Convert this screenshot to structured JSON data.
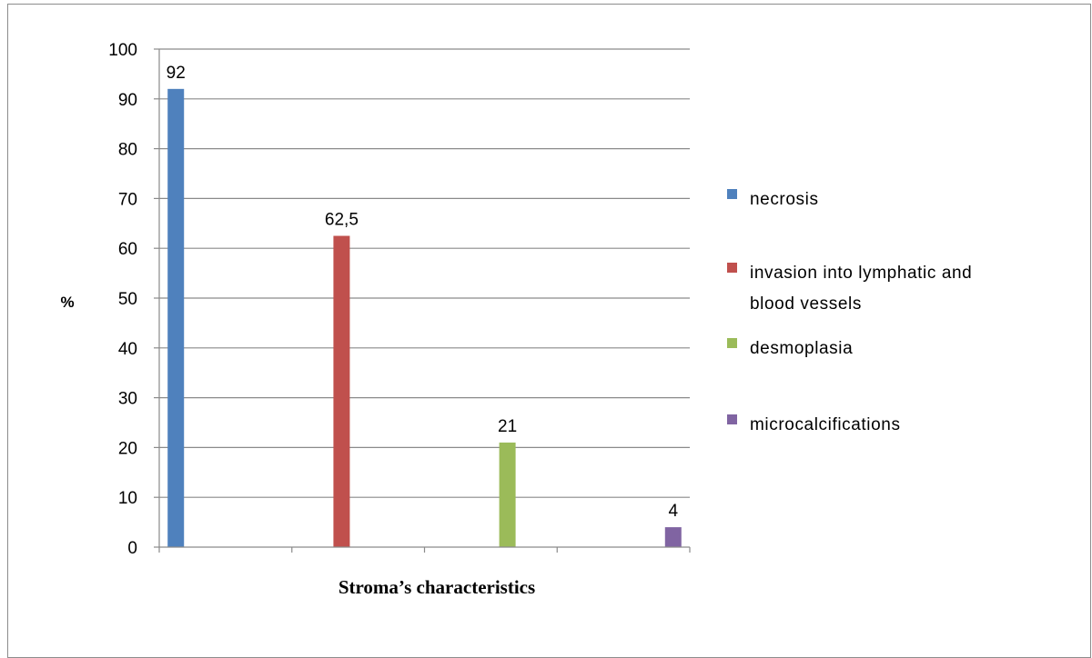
{
  "chart_data": {
    "type": "bar",
    "xlabel": "Stroma’s characteristics",
    "ylabel": "%",
    "ylim": [
      0,
      100
    ],
    "ytick_step": 10,
    "grid": true,
    "legend_position": "right",
    "categories": [
      "necrosis",
      "invasion into lymphatic and blood vessels",
      "desmoplasia",
      "microcalcifications"
    ],
    "series": [
      {
        "name": "necrosis",
        "color": "#4F81BD",
        "category_index": 0,
        "value": 92,
        "label": "92"
      },
      {
        "name": "invasion into lymphatic and blood vessels",
        "color": "#C0504D",
        "category_index": 1,
        "value": 62.5,
        "label": "62,5"
      },
      {
        "name": "desmoplasia",
        "color": "#9BBB59",
        "category_index": 2,
        "value": 21,
        "label": "21"
      },
      {
        "name": "microcalcifications",
        "color": "#8064A2",
        "category_index": 3,
        "value": 4,
        "label": "4"
      }
    ],
    "legend": [
      {
        "lines": [
          "necrosis"
        ],
        "color": "#4F81BD"
      },
      {
        "lines": [
          "invasion into lymphatic and",
          "blood vessels"
        ],
        "color": "#C0504D"
      },
      {
        "lines": [
          "desmoplasia"
        ],
        "color": "#9BBB59"
      },
      {
        "lines": [
          "microcalcifications"
        ],
        "color": "#8064A2"
      }
    ]
  }
}
